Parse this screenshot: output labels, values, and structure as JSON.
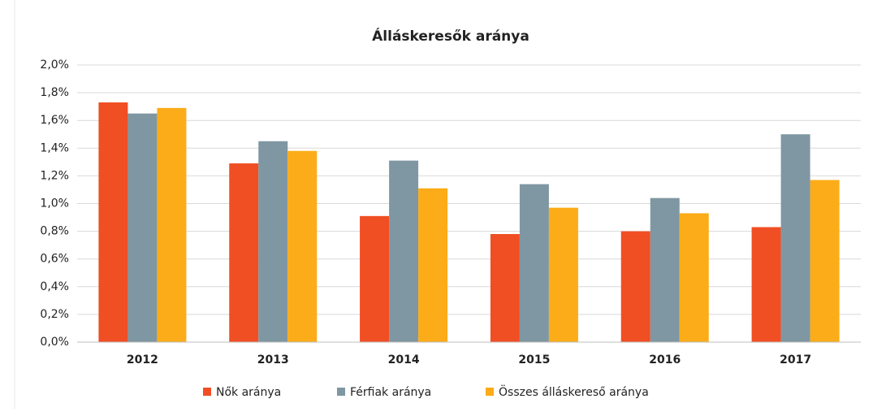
{
  "chart_data": {
    "type": "bar",
    "title": "Álláskeresők aránya",
    "categories": [
      "2012",
      "2013",
      "2014",
      "2015",
      "2016",
      "2017"
    ],
    "series": [
      {
        "name": "Nők aránya",
        "color": "#f04e23",
        "values": [
          1.73,
          1.29,
          0.91,
          0.78,
          0.8,
          0.83
        ]
      },
      {
        "name": "Férfiak aránya",
        "color": "#7f97a2",
        "values": [
          1.65,
          1.45,
          1.31,
          1.14,
          1.04,
          1.5
        ]
      },
      {
        "name": "Összes álláskereső aránya",
        "color": "#fbac18",
        "values": [
          1.69,
          1.38,
          1.11,
          0.97,
          0.93,
          1.17
        ]
      }
    ],
    "ylim": [
      0,
      2.0
    ],
    "yticks": [
      {
        "value": 0,
        "label": "0,0%"
      },
      {
        "value": 0.2,
        "label": "0,2%"
      },
      {
        "value": 0.4,
        "label": "0,4%"
      },
      {
        "value": 0.6,
        "label": "0,6%"
      },
      {
        "value": 0.8,
        "label": "0,8%"
      },
      {
        "value": 1.0,
        "label": "1,0%"
      },
      {
        "value": 1.2,
        "label": "1,2%"
      },
      {
        "value": 1.4,
        "label": "1,4%"
      },
      {
        "value": 1.6,
        "label": "1,6%"
      },
      {
        "value": 1.8,
        "label": "1,8%"
      },
      {
        "value": 2.0,
        "label": "2,0%"
      }
    ],
    "grid": true,
    "legend": "bottom"
  }
}
